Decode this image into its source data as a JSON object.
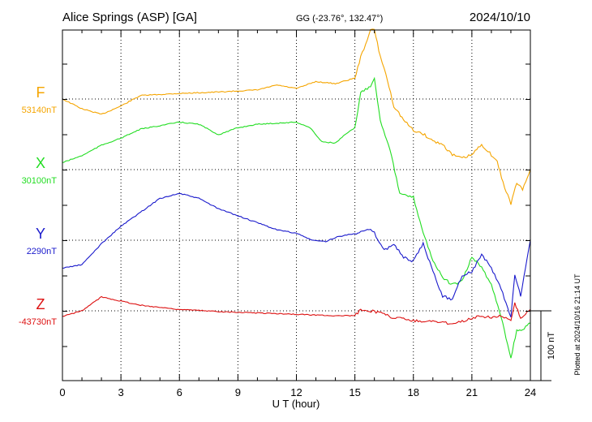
{
  "header": {
    "station": "Alice Springs (ASP)  [GA]",
    "coords": "GG (-23.76°, 132.47°)",
    "date": "2024/10/10"
  },
  "footer": {
    "plotted": "Plotted at 2024/10/16 21:14 UT"
  },
  "chart_data": {
    "type": "line",
    "xlabel": "U T (hour)",
    "xlim": [
      0,
      24
    ],
    "x_ticks": [
      "0",
      "3",
      "6",
      "9",
      "12",
      "15",
      "18",
      "21",
      "24"
    ],
    "grid": true,
    "scale_bar": {
      "label": "100 nT",
      "value_nT": 100
    },
    "series": [
      {
        "name": "F",
        "baseline_label": "53140nT",
        "baseline_nT": 53140,
        "color": "#f5a500",
        "points": [
          [
            0,
            53140
          ],
          [
            1,
            53126
          ],
          [
            2,
            53118
          ],
          [
            3,
            53130
          ],
          [
            4,
            53145
          ],
          [
            6,
            53148
          ],
          [
            8,
            53150
          ],
          [
            10,
            53153
          ],
          [
            11,
            53160
          ],
          [
            12,
            53155
          ],
          [
            13,
            53165
          ],
          [
            14,
            53162
          ],
          [
            15,
            53170
          ],
          [
            15.3,
            53200
          ],
          [
            15.8,
            53238
          ],
          [
            16,
            53240
          ],
          [
            16.3,
            53200
          ],
          [
            16.5,
            53185
          ],
          [
            17,
            53130
          ],
          [
            17.5,
            53110
          ],
          [
            18,
            53095
          ],
          [
            18.5,
            53090
          ],
          [
            19,
            53080
          ],
          [
            19.5,
            53075
          ],
          [
            20,
            53060
          ],
          [
            20.5,
            53055
          ],
          [
            21,
            53060
          ],
          [
            21.5,
            53075
          ],
          [
            22,
            53060
          ],
          [
            22.3,
            53050
          ],
          [
            22.6,
            53020
          ],
          [
            23,
            52990
          ],
          [
            23.3,
            53020
          ],
          [
            23.6,
            53010
          ],
          [
            24,
            53040
          ]
        ]
      },
      {
        "name": "X",
        "baseline_label": "30100nT",
        "baseline_nT": 30100,
        "color": "#22dd22",
        "points": [
          [
            0,
            30110
          ],
          [
            1,
            30120
          ],
          [
            2,
            30135
          ],
          [
            3,
            30145
          ],
          [
            4,
            30158
          ],
          [
            6,
            30168
          ],
          [
            7,
            30165
          ],
          [
            8,
            30150
          ],
          [
            9,
            30160
          ],
          [
            10,
            30165
          ],
          [
            12,
            30168
          ],
          [
            12.7,
            30160
          ],
          [
            13.3,
            30140
          ],
          [
            14,
            30138
          ],
          [
            14.5,
            30150
          ],
          [
            15,
            30160
          ],
          [
            15.3,
            30210
          ],
          [
            15.8,
            30220
          ],
          [
            16,
            30232
          ],
          [
            16.3,
            30170
          ],
          [
            16.8,
            30130
          ],
          [
            17.3,
            30065
          ],
          [
            18,
            30060
          ],
          [
            18.5,
            30010
          ],
          [
            19,
            29970
          ],
          [
            19.5,
            29945
          ],
          [
            20,
            29935
          ],
          [
            20.5,
            29940
          ],
          [
            21,
            29975
          ],
          [
            21.5,
            29960
          ],
          [
            22,
            29935
          ],
          [
            22.5,
            29890
          ],
          [
            23,
            29830
          ],
          [
            23.3,
            29870
          ],
          [
            23.6,
            29870
          ],
          [
            24,
            29880
          ]
        ]
      },
      {
        "name": "Y",
        "baseline_label": "2290nT",
        "baseline_nT": 2290,
        "color": "#1a1acc",
        "points": [
          [
            0,
            2250
          ],
          [
            1,
            2255
          ],
          [
            2,
            2285
          ],
          [
            3,
            2310
          ],
          [
            4,
            2330
          ],
          [
            5,
            2350
          ],
          [
            6,
            2357
          ],
          [
            7,
            2350
          ],
          [
            8,
            2335
          ],
          [
            9,
            2325
          ],
          [
            10,
            2315
          ],
          [
            11,
            2305
          ],
          [
            12,
            2300
          ],
          [
            12.8,
            2290
          ],
          [
            13.5,
            2288
          ],
          [
            14,
            2294
          ],
          [
            15,
            2300
          ],
          [
            15.3,
            2302
          ],
          [
            15.8,
            2305
          ],
          [
            16,
            2300
          ],
          [
            16.5,
            2275
          ],
          [
            17,
            2285
          ],
          [
            17.5,
            2265
          ],
          [
            18,
            2260
          ],
          [
            18.5,
            2285
          ],
          [
            19,
            2245
          ],
          [
            19.5,
            2210
          ],
          [
            20,
            2205
          ],
          [
            20.5,
            2240
          ],
          [
            21,
            2245
          ],
          [
            21.5,
            2270
          ],
          [
            22,
            2250
          ],
          [
            22.5,
            2220
          ],
          [
            23,
            2180
          ],
          [
            23.2,
            2240
          ],
          [
            23.5,
            2210
          ],
          [
            24,
            2290
          ]
        ]
      },
      {
        "name": "Z",
        "baseline_label": "-43730nT",
        "baseline_nT": -43730,
        "color": "#dd1111",
        "points": [
          [
            0,
            -43738
          ],
          [
            1,
            -43730
          ],
          [
            2,
            -43710
          ],
          [
            3,
            -43716
          ],
          [
            4,
            -43722
          ],
          [
            5,
            -43725
          ],
          [
            6,
            -43728
          ],
          [
            8,
            -43731
          ],
          [
            10,
            -43733
          ],
          [
            12,
            -43735
          ],
          [
            14,
            -43737
          ],
          [
            15,
            -43737
          ],
          [
            15.3,
            -43728
          ],
          [
            16,
            -43731
          ],
          [
            16.5,
            -43735
          ],
          [
            17,
            -43740
          ],
          [
            17.5,
            -43741
          ],
          [
            18,
            -43744
          ],
          [
            18.5,
            -43745
          ],
          [
            19,
            -43745
          ],
          [
            19.5,
            -43747
          ],
          [
            20,
            -43748
          ],
          [
            20.5,
            -43745
          ],
          [
            21,
            -43740
          ],
          [
            21.5,
            -43738
          ],
          [
            22,
            -43739
          ],
          [
            22.5,
            -43737
          ],
          [
            23,
            -43745
          ],
          [
            23.2,
            -43720
          ],
          [
            23.5,
            -43740
          ],
          [
            24,
            -43728
          ]
        ]
      }
    ]
  }
}
